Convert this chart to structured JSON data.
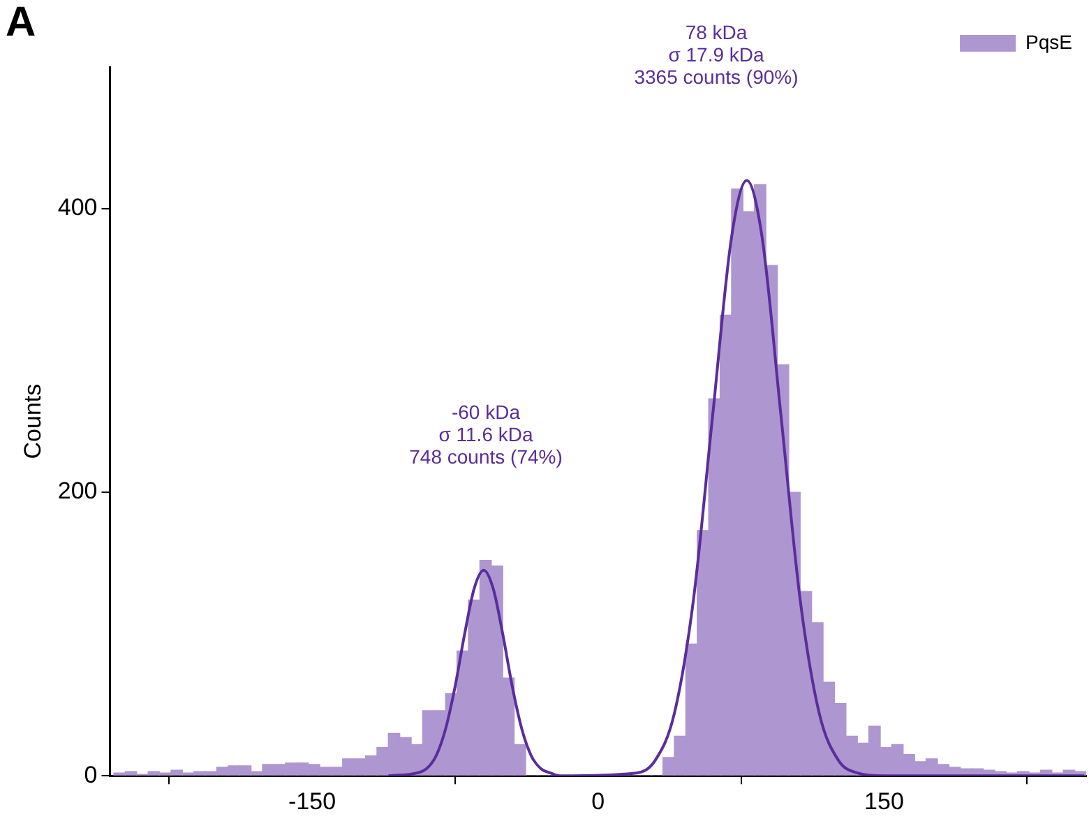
{
  "chart_data": {
    "type": "histogram",
    "ylabel": "Counts",
    "annotations": [
      "A",
      "-60 kDa\nσ 11.6 kDa\n748 counts (74%)",
      "78 kDa\nσ 17.9 kDa\n3365 counts (90%)"
    ],
    "xlim": [
      -256,
      256
    ],
    "xticks": [
      -150,
      0,
      150
    ],
    "ylim": [
      0,
      500
    ],
    "yticks": [
      0,
      200,
      400
    ],
    "grid": false,
    "legend": "top right",
    "series": [
      {
        "name": "PqsE",
        "color": "#ae96d1",
        "bins": [
          -254,
          -248,
          -242,
          -236,
          -230,
          -224,
          -218,
          -212,
          -206,
          -200,
          -194,
          -188,
          -182,
          -176,
          -170,
          -164,
          -158,
          -152,
          -146,
          -140,
          -134,
          -128,
          -122,
          -116,
          -110,
          -104,
          -98,
          -92,
          -86,
          -80,
          -74,
          -68,
          -62,
          -56,
          -50,
          -44,
          -38,
          -32,
          -26,
          -20,
          -14,
          -8,
          -2,
          4,
          10,
          16,
          22,
          28,
          34,
          40,
          46,
          52,
          58,
          64,
          70,
          76,
          82,
          88,
          94,
          100,
          106,
          112,
          118,
          124,
          130,
          136,
          142,
          148,
          154,
          160,
          166,
          172,
          178,
          184,
          190,
          196,
          202,
          208,
          214,
          220,
          226,
          232,
          238,
          244,
          250,
          256
        ],
        "values": [
          2,
          3,
          1,
          3,
          2,
          4,
          2,
          3,
          3,
          6,
          7,
          7,
          3,
          8,
          8,
          9,
          9,
          8,
          6,
          6,
          12,
          12,
          14,
          20,
          30,
          27,
          22,
          46,
          46,
          58,
          88,
          124,
          152,
          148,
          69,
          22,
          0,
          0,
          0,
          0,
          0,
          0,
          0,
          0,
          0,
          0,
          0,
          0,
          13,
          28,
          93,
          173,
          266,
          325,
          414,
          398,
          417,
          360,
          290,
          200,
          130,
          108,
          66,
          51,
          28,
          23,
          35,
          20,
          22,
          15,
          10,
          12,
          8,
          6,
          5,
          5,
          4,
          3,
          2,
          3,
          2,
          4,
          2,
          4,
          3
        ]
      },
      {
        "type": "line",
        "color": "#5a2d9c",
        "x": [
          -110,
          -95,
          -90,
          -85,
          -80,
          -75,
          -70,
          -65,
          -60,
          -55,
          -50,
          -45,
          -40,
          -35,
          -30,
          -25,
          -20,
          20,
          30,
          40,
          50,
          60,
          70,
          78,
          86,
          96,
          106,
          116,
          126,
          136,
          150,
          200,
          255
        ],
        "values": [
          0,
          2,
          5,
          14,
          33,
          63,
          100,
          132,
          145,
          132,
          100,
          63,
          33,
          14,
          5,
          2,
          0,
          2,
          11,
          44,
          124,
          253,
          380,
          420,
          380,
          253,
          124,
          44,
          11,
          2,
          0,
          0,
          0
        ]
      }
    ]
  }
}
